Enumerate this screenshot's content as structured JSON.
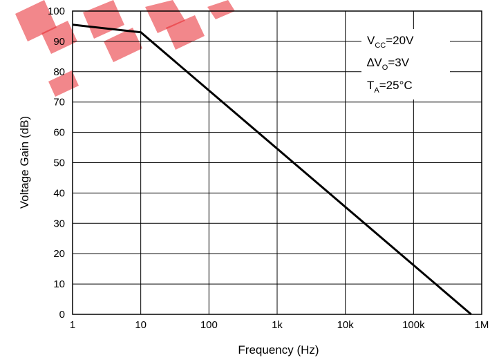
{
  "chart_data": {
    "type": "line",
    "xlabel": "Frequency (Hz)",
    "ylabel": "Voltage Gain (dB)",
    "x_scale": "log",
    "xlim": [
      1,
      1000000
    ],
    "ylim": [
      0,
      100
    ],
    "x_ticks": [
      {
        "value": 1,
        "label": "1"
      },
      {
        "value": 10,
        "label": "10"
      },
      {
        "value": 100,
        "label": "100"
      },
      {
        "value": 1000,
        "label": "1k"
      },
      {
        "value": 10000,
        "label": "10k"
      },
      {
        "value": 100000,
        "label": "100k"
      },
      {
        "value": 1000000,
        "label": "1M"
      }
    ],
    "y_ticks": [
      0,
      10,
      20,
      30,
      40,
      50,
      60,
      70,
      80,
      90,
      100
    ],
    "grid": true,
    "series": [
      {
        "x": [
          1,
          10,
          700000
        ],
        "y": [
          95.5,
          93,
          0
        ],
        "color": "#000000"
      }
    ],
    "conditions": {
      "vcc": {
        "main": "V",
        "sub": "CC",
        "value": "=20V"
      },
      "dvo": {
        "prefix": "∆V",
        "sub": "O",
        "value": "=3V"
      },
      "ta": {
        "main": "T",
        "sub": "A",
        "value": "=25°C"
      }
    }
  },
  "watermark": {
    "color": "#e8242c"
  }
}
